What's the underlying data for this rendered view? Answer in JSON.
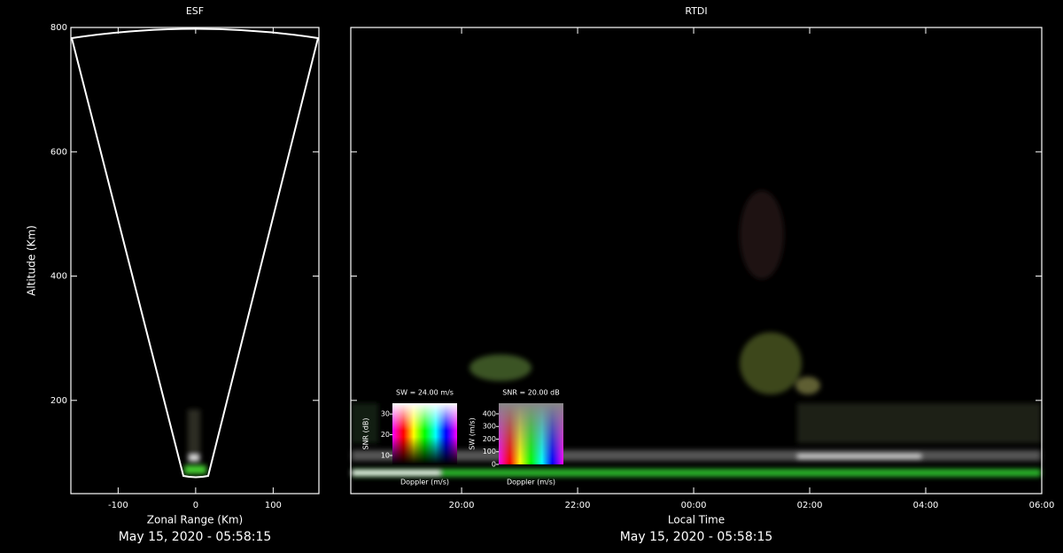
{
  "chart_data": [
    {
      "type": "fan",
      "title": "ESF",
      "x_label": "Zonal Range (Km)",
      "y_label": "Altitude (Km)",
      "footer": "May 15, 2020 - 05:58:15",
      "xlim": [
        -161,
        159
      ],
      "xticks": [
        -100,
        0,
        100
      ],
      "ylim": [
        50,
        800
      ],
      "yticks": [
        200,
        400,
        600,
        800
      ]
    },
    {
      "type": "rtdi",
      "title": "RTDI",
      "x_label": "Local Time",
      "footer": "May 15, 2020 - 05:58:15",
      "xlim": [
        18.09,
        30
      ],
      "xticks": [
        {
          "value": 20,
          "label": "20:00"
        },
        {
          "value": 22,
          "label": "22:00"
        },
        {
          "value": 24,
          "label": "00:00"
        },
        {
          "value": 26,
          "label": "02:00"
        },
        {
          "value": 28,
          "label": "04:00"
        },
        {
          "value": 30,
          "label": "06:00"
        }
      ],
      "ylim": [
        50,
        800
      ],
      "legends": [
        {
          "title": "SW = 24.00 m/s",
          "y_label": "SNR (dB)",
          "x_label": "Doppler (m/s)",
          "ylim": [
            5.7,
            35.2
          ],
          "yticks": [
            10,
            20,
            30
          ]
        },
        {
          "title": "SNR = 20.00 dB",
          "y_label": "SW (m/s)",
          "x_label": "Doppler (m/s)",
          "ylim": [
            0,
            484
          ],
          "yticks": [
            0,
            100,
            200,
            300,
            400
          ]
        }
      ]
    }
  ]
}
